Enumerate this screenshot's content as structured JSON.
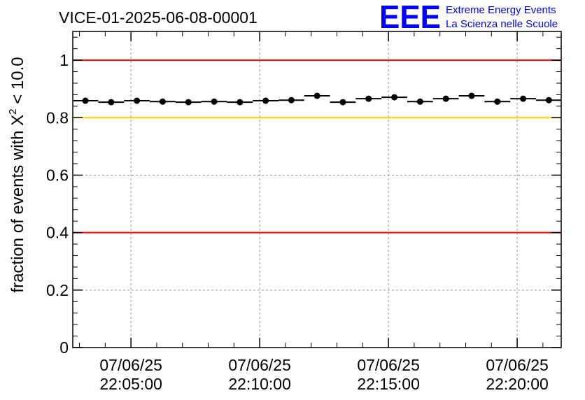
{
  "chart_data": {
    "type": "scatter",
    "title": "VICE-01-2025-06-08-00001",
    "xlabel": "",
    "ylabel": "fraction of events with X",
    "ylabel_sup": "2",
    "ylabel_suffix": " < 10.0",
    "xlim_minutes": [
      -2.26,
      16.71
    ],
    "x_reference": "07/06/25 22:05:00",
    "ylim": [
      0,
      1.1
    ],
    "grid": true,
    "bin_width_minutes": 1,
    "x_minutes": [
      -1.77,
      -0.77,
      0.23,
      1.23,
      2.23,
      3.23,
      4.23,
      5.23,
      6.23,
      7.23,
      8.23,
      9.23,
      10.23,
      11.23,
      12.23,
      13.23,
      14.23,
      15.23,
      16.23
    ],
    "values": [
      0.859,
      0.854,
      0.859,
      0.856,
      0.854,
      0.856,
      0.854,
      0.859,
      0.861,
      0.876,
      0.854,
      0.866,
      0.871,
      0.856,
      0.866,
      0.876,
      0.856,
      0.866,
      0.861
    ],
    "yticks": [
      {
        "value": 0,
        "label": "0"
      },
      {
        "value": 0.2,
        "label": "0.2"
      },
      {
        "value": 0.4,
        "label": "0.4"
      },
      {
        "value": 0.6,
        "label": "0.6"
      },
      {
        "value": 0.8,
        "label": "0.8"
      },
      {
        "value": 1,
        "label": "1"
      }
    ],
    "xticks": [
      {
        "minutes": 0,
        "date": "07/06/25",
        "time": "22:05:00"
      },
      {
        "minutes": 5,
        "date": "07/06/25",
        "time": "22:10:00"
      },
      {
        "minutes": 10,
        "date": "07/06/25",
        "time": "22:15:00"
      },
      {
        "minutes": 15,
        "date": "07/06/25",
        "time": "22:20:00"
      }
    ],
    "reference_lines": [
      {
        "value": 1.0,
        "color": "#ff0000"
      },
      {
        "value": 0.8,
        "color": "#ffcc00"
      },
      {
        "value": 0.4,
        "color": "#ff0000"
      }
    ]
  },
  "logo": {
    "mark": "EEE",
    "line1": "Extreme Energy Events",
    "line2": "La Scienza nelle Scuole",
    "color": "#0000ff"
  }
}
